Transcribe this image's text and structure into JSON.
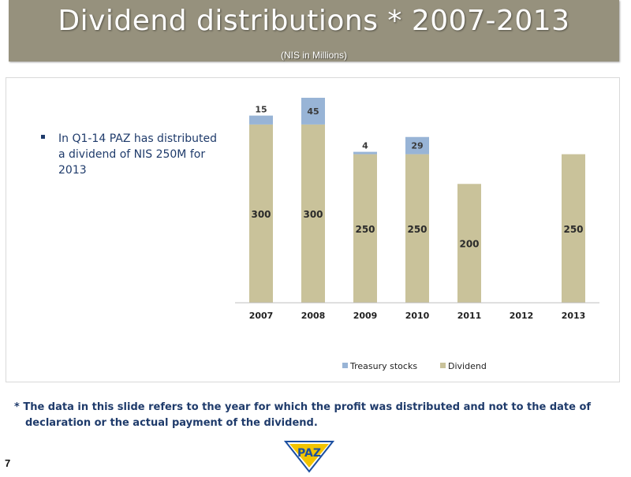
{
  "header": {
    "title": "Dividend distributions * 2007-2013",
    "subtitle": "(NIS in Millions)"
  },
  "bullet": {
    "text": "In Q1-14 PAZ has distributed a dividend of NIS 250M for 2013"
  },
  "footnote": {
    "text": "* The data in this slide refers to the year for which the profit was distributed and not to the date of declaration or the actual payment of the dividend."
  },
  "page_number": "7",
  "logo": {
    "text": "PAZ",
    "colors": {
      "yellow": "#f3c400",
      "blue": "#1c4fa0"
    }
  },
  "colors": {
    "title_bar": "#96917d",
    "dividend": "#c9c29a",
    "treasury": "#98b4d6",
    "text_navy": "#1f3b6b"
  },
  "chart_data": {
    "type": "bar",
    "stacked": true,
    "categories": [
      "2007",
      "2008",
      "2009",
      "2010",
      "2011",
      "2012",
      "2013"
    ],
    "series": [
      {
        "name": "Treasury stocks",
        "values": [
          15,
          45,
          4,
          29,
          0,
          0,
          0
        ],
        "labels": [
          "15",
          "45",
          "4",
          "29",
          "",
          "",
          ""
        ],
        "color": "#98b4d6"
      },
      {
        "name": "Dividend",
        "values": [
          300,
          300,
          250,
          250,
          200,
          0,
          250
        ],
        "labels": [
          "300",
          "300",
          "250",
          "250",
          "200",
          "",
          "250"
        ],
        "color": "#c9c29a"
      }
    ],
    "ylim": [
      0,
      345
    ],
    "grid": false,
    "legend": "bottom"
  }
}
